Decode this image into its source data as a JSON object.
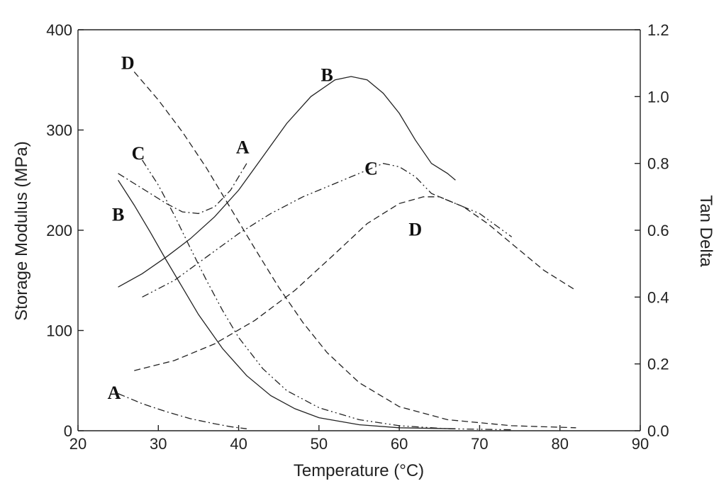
{
  "chart_data": {
    "type": "line",
    "xlabel": "Temperature (°C)",
    "ylabel": "Storage Modulus (MPa)",
    "y2label": "Tan Delta",
    "xlim": [
      20,
      90
    ],
    "ylim": [
      0,
      400
    ],
    "y2lim": [
      0,
      1.2
    ],
    "xticks": [
      20,
      30,
      40,
      50,
      60,
      70,
      80,
      90
    ],
    "yticks": [
      0,
      100,
      200,
      300,
      400
    ],
    "y2ticks": [
      "0.0",
      "0.2",
      "0.4",
      "0.6",
      "0.8",
      "1.0",
      "1.2"
    ],
    "grid": false,
    "legend": "none",
    "series": [
      {
        "label": "A",
        "quantity": "storage_modulus",
        "axis": "left",
        "dash": "dashdot",
        "x": [
          25,
          28,
          31,
          34,
          37,
          39,
          41
        ],
        "y": [
          37,
          27,
          19,
          12,
          7,
          4,
          2
        ]
      },
      {
        "label": "B",
        "quantity": "storage_modulus",
        "axis": "left",
        "dash": "solid",
        "x": [
          25,
          27,
          29,
          31,
          33,
          35,
          38,
          41,
          44,
          47,
          50,
          55,
          60,
          67
        ],
        "y": [
          250,
          225,
          198,
          170,
          143,
          116,
          82,
          55,
          35,
          22,
          13,
          6,
          3,
          2
        ]
      },
      {
        "label": "C",
        "quantity": "storage_modulus",
        "axis": "left",
        "dash": "dashdotdot",
        "x": [
          28,
          30,
          32,
          34,
          36,
          38,
          40,
          43,
          46,
          50,
          55,
          60,
          66,
          74
        ],
        "y": [
          270,
          245,
          215,
          182,
          150,
          120,
          93,
          62,
          40,
          23,
          11,
          5,
          2,
          1
        ]
      },
      {
        "label": "D",
        "quantity": "storage_modulus",
        "axis": "left",
        "dash": "dashed",
        "x": [
          27,
          30,
          33,
          36,
          39,
          42,
          45,
          48,
          51,
          55,
          60,
          66,
          74,
          82
        ],
        "y": [
          358,
          330,
          298,
          262,
          222,
          182,
          143,
          108,
          78,
          48,
          24,
          11,
          5,
          3
        ]
      },
      {
        "label": "A",
        "quantity": "tan_delta",
        "axis": "right",
        "dash": "dashdot",
        "x": [
          25,
          27,
          29,
          31,
          33,
          35,
          37,
          39,
          41
        ],
        "y": [
          0.77,
          0.74,
          0.71,
          0.68,
          0.655,
          0.65,
          0.67,
          0.72,
          0.8
        ]
      },
      {
        "label": "B",
        "quantity": "tan_delta",
        "axis": "right",
        "dash": "solid",
        "x": [
          25,
          28,
          31,
          34,
          37,
          40,
          43,
          46,
          49,
          52,
          54,
          56,
          58,
          60,
          62,
          64,
          66,
          67
        ],
        "y": [
          0.43,
          0.47,
          0.52,
          0.575,
          0.64,
          0.72,
          0.82,
          0.92,
          1.0,
          1.05,
          1.06,
          1.05,
          1.01,
          0.95,
          0.87,
          0.8,
          0.77,
          0.75
        ]
      },
      {
        "label": "C",
        "quantity": "tan_delta",
        "axis": "right",
        "dash": "dashdotdot",
        "x": [
          28,
          32,
          36,
          40,
          44,
          48,
          52,
          56,
          58,
          60,
          62,
          64,
          66,
          70,
          74
        ],
        "y": [
          0.4,
          0.45,
          0.52,
          0.59,
          0.65,
          0.7,
          0.74,
          0.78,
          0.8,
          0.79,
          0.76,
          0.71,
          0.69,
          0.65,
          0.58
        ]
      },
      {
        "label": "D",
        "quantity": "tan_delta",
        "axis": "right",
        "dash": "dashed",
        "x": [
          27,
          32,
          37,
          42,
          47,
          52,
          56,
          60,
          63,
          65,
          68,
          71,
          74,
          78,
          82
        ],
        "y": [
          0.18,
          0.21,
          0.26,
          0.33,
          0.42,
          0.53,
          0.62,
          0.68,
          0.7,
          0.7,
          0.67,
          0.62,
          0.56,
          0.48,
          0.42
        ]
      }
    ],
    "annotations": [
      {
        "text": "D",
        "x": 26.2,
        "y": 367
      },
      {
        "text": "B",
        "x": 51.0,
        "y": 355
      },
      {
        "text": "C",
        "x": 27.5,
        "y": 277
      },
      {
        "text": "A",
        "x": 40.5,
        "y": 283
      },
      {
        "text": "C",
        "x": 56.5,
        "y": 262
      },
      {
        "text": "B",
        "x": 25.0,
        "y": 216
      },
      {
        "text": "D",
        "x": 62.0,
        "y": 201
      },
      {
        "text": "A",
        "x": 24.5,
        "y": 38
      }
    ]
  }
}
